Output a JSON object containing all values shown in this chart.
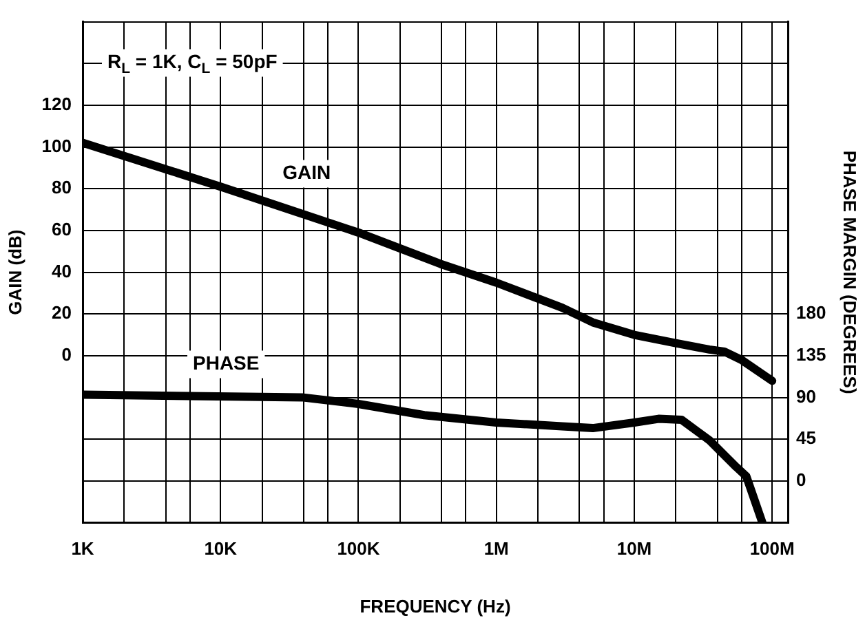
{
  "chart_data": {
    "type": "line",
    "xlabel": "FREQUENCY (Hz)",
    "ylabel": "GAIN (dB)",
    "y2label": "PHASE MARGIN (DEGREES)",
    "annotations": [
      "R$_{L}$ = 1K, C$_{L}$ = 50pF"
    ],
    "log": "x",
    "grid": true,
    "legend": false,
    "marker": "none",
    "line_style": "solid",
    "xlim": [
      1000,
      130000000
    ],
    "xticks": [
      {
        "value": 1000,
        "label": "1K"
      },
      {
        "value": 2000,
        "label": null
      },
      {
        "value": 4000,
        "label": null
      },
      {
        "value": 6000,
        "label": null
      },
      {
        "value": 10000,
        "label": "10K"
      },
      {
        "value": 20000,
        "label": null
      },
      {
        "value": 40000,
        "label": null
      },
      {
        "value": 60000,
        "label": null
      },
      {
        "value": 100000,
        "label": "100K"
      },
      {
        "value": 200000,
        "label": null
      },
      {
        "value": 400000,
        "label": null
      },
      {
        "value": 600000,
        "label": null
      },
      {
        "value": 1000000,
        "label": "1M"
      },
      {
        "value": 2000000,
        "label": null
      },
      {
        "value": 4000000,
        "label": null
      },
      {
        "value": 6000000,
        "label": null
      },
      {
        "value": 10000000,
        "label": "10M"
      },
      {
        "value": 20000000,
        "label": null
      },
      {
        "value": 40000000,
        "label": null
      },
      {
        "value": 60000000,
        "label": null
      },
      {
        "value": 100000000,
        "label": "100M"
      }
    ],
    "ylim": [
      -80,
      160
    ],
    "yticks": [
      {
        "value": -80,
        "label": null
      },
      {
        "value": -60,
        "label": null
      },
      {
        "value": -40,
        "label": null
      },
      {
        "value": -20,
        "label": null
      },
      0,
      20,
      40,
      60,
      80,
      100,
      120,
      {
        "value": 140,
        "label": null
      },
      {
        "value": 160,
        "label": null
      }
    ],
    "y2lim": [
      -45,
      495
    ],
    "y2ticks": [
      0,
      45,
      90,
      135,
      180
    ],
    "series": [
      {
        "name": "GAIN",
        "color": "#000000",
        "x": [
          1000,
          10000,
          100000,
          393000,
          1000000,
          3000000,
          5000000,
          10000000,
          20000000,
          35000000,
          45000000,
          60000000,
          100000000
        ],
        "values": [
          102,
          81,
          59,
          44,
          35,
          23,
          16,
          10,
          6,
          3,
          2,
          -2,
          -12
        ]
      },
      {
        "name": "PHASE",
        "color": "#000000",
        "axis": "y2",
        "x": [
          1000,
          40000,
          100000,
          300000,
          1000000,
          3000000,
          5000000,
          10000000,
          15000000,
          22000000,
          35000000,
          55000000,
          65000000,
          85000000
        ],
        "values": [
          93,
          90,
          83,
          71,
          63,
          59,
          57,
          63,
          67,
          66,
          44,
          15,
          5,
          -45
        ]
      }
    ]
  }
}
